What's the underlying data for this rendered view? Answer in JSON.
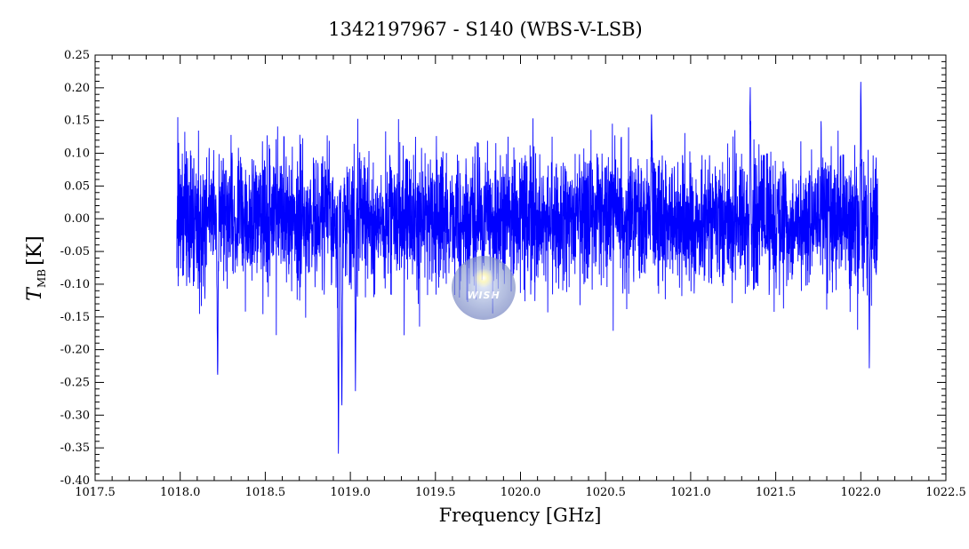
{
  "chart_data": {
    "type": "line",
    "title": "1342197967 - S140 (WBS-V-LSB)",
    "xlabel": "Frequency [GHz]",
    "ylabel_main": "T",
    "ylabel_sub": "MB",
    "ylabel_unit": "[K]",
    "xlim": [
      1017.5,
      1022.5
    ],
    "ylim": [
      -0.4,
      0.25
    ],
    "x_ticks": [
      "1017.5",
      "1018.0",
      "1018.5",
      "1019.0",
      "1019.5",
      "1020.0",
      "1020.5",
      "1021.0",
      "1021.5",
      "1022.0",
      "1022.5"
    ],
    "y_ticks": [
      "0.25",
      "0.20",
      "0.15",
      "0.10",
      "0.05",
      "0.00",
      "-0.05",
      "-0.10",
      "-0.15",
      "-0.20",
      "-0.25",
      "-0.30",
      "-0.35",
      "-0.40"
    ],
    "series": [
      {
        "color": "#0000ff",
        "x_range": [
          1017.98,
          1022.1
        ],
        "noise_rms": 0.05,
        "features": [
          {
            "x": 1018.22,
            "y": -0.26
          },
          {
            "x": 1018.93,
            "y": -0.37
          },
          {
            "x": 1018.95,
            "y": -0.3
          },
          {
            "x": 1019.03,
            "y": -0.27
          },
          {
            "x": 1020.77,
            "y": 0.17
          },
          {
            "x": 1021.35,
            "y": 0.21
          },
          {
            "x": 1022.0,
            "y": 0.21
          },
          {
            "x": 1022.05,
            "y": -0.23
          }
        ]
      }
    ],
    "grid": false,
    "watermark": "WISH"
  }
}
